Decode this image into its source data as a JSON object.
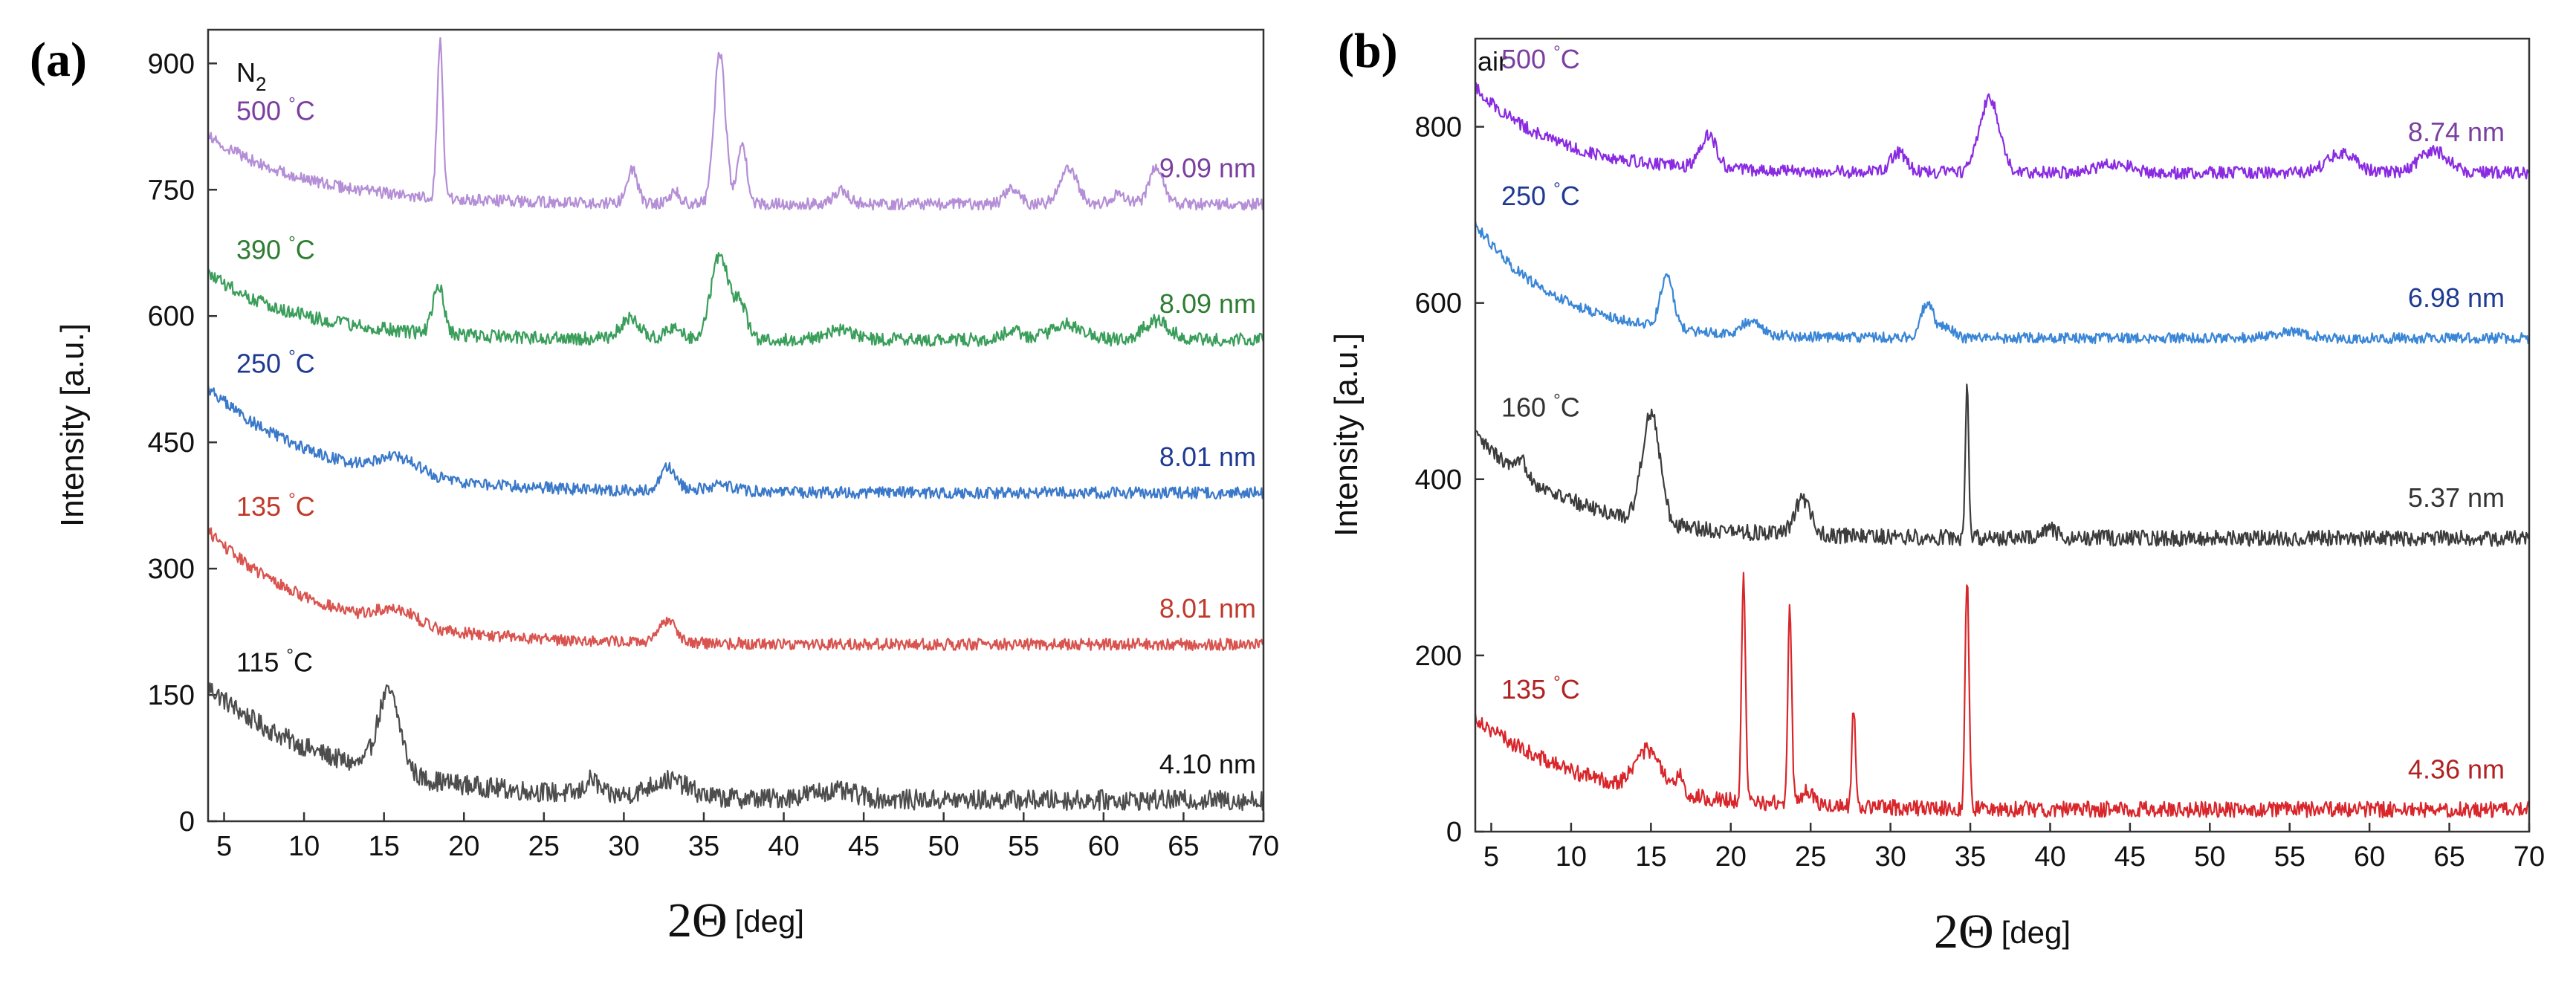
{
  "chart_data": [
    {
      "type": "line",
      "panel": "(a)",
      "atmosphere": "N",
      "atmosphere_subscript": "2",
      "xlabel_symbol": "2Θ",
      "xlabel_unit": "[deg]",
      "ylabel": "Intensity [a.u.]",
      "xlim": [
        4,
        70
      ],
      "ylim": [
        0,
        940
      ],
      "xticks": [
        5,
        10,
        15,
        20,
        25,
        30,
        35,
        40,
        45,
        50,
        55,
        60,
        65,
        70
      ],
      "yticks": [
        0,
        150,
        300,
        450,
        600,
        750,
        900
      ],
      "series": [
        {
          "name": "115 °C",
          "temp_value": "115",
          "temp_unit": "°C",
          "size": "4.10 nm",
          "color": "#4d4d4d",
          "temp_color": "#111111",
          "size_color": "#111111",
          "base": 160,
          "end": 25,
          "decay": 8,
          "noise": 12,
          "peaks": [
            [
              15.3,
              95,
              0.7
            ],
            [
              28,
              18,
              0.4
            ],
            [
              32.8,
              20,
              1.2
            ],
            [
              43,
              10,
              1.5
            ]
          ]
        },
        {
          "name": "135 °C",
          "temp_value": "135",
          "temp_unit": "°C",
          "size": "8.01 nm",
          "color": "#d9534f",
          "temp_color": "#c0392b",
          "size_color": "#c0392b",
          "base": 345,
          "end": 210,
          "decay": 7,
          "noise": 7,
          "peaks": [
            [
              15.8,
              18,
              1.2
            ],
            [
              32.8,
              28,
              0.5
            ]
          ]
        },
        {
          "name": "250 °C",
          "temp_value": "250",
          "temp_unit": "°C",
          "size": "8.01 nm",
          "color": "#3a78c9",
          "temp_color": "#1f3a93",
          "size_color": "#1f3a93",
          "base": 515,
          "end": 390,
          "decay": 7,
          "noise": 7,
          "peaks": [
            [
              15.8,
              20,
              1.3
            ],
            [
              32.8,
              28,
              0.5
            ],
            [
              36,
              8,
              1
            ]
          ]
        },
        {
          "name": "390 °C",
          "temp_value": "390",
          "temp_unit": "°C",
          "size": "8.09 nm",
          "color": "#3a9e5b",
          "temp_color": "#2e7d32",
          "size_color": "#2e7d32",
          "base": 650,
          "end": 572,
          "decay": 6,
          "noise": 8,
          "peaks": [
            [
              18.4,
              58,
              0.35
            ],
            [
              30.4,
              25,
              0.6
            ],
            [
              33.2,
              15,
              0.5
            ],
            [
              36,
              100,
              0.55
            ],
            [
              37.3,
              40,
              0.4
            ],
            [
              43.6,
              12,
              0.8
            ],
            [
              54.3,
              10,
              0.6
            ],
            [
              57.7,
              18,
              1
            ],
            [
              63.3,
              22,
              0.8
            ]
          ]
        },
        {
          "name": "500 °C",
          "temp_value": "500",
          "temp_unit": "°C",
          "size": "9.09 nm",
          "color": "#b48ed6",
          "temp_color": "#7b3fa0",
          "size_color": "#7b3fa0",
          "base": 815,
          "end": 733,
          "decay": 6,
          "noise": 7,
          "peaks": [
            [
              18.5,
              185,
              0.18
            ],
            [
              30.5,
              40,
              0.35
            ],
            [
              33.2,
              15,
              0.3
            ],
            [
              36,
              180,
              0.35
            ],
            [
              37.4,
              75,
              0.28
            ],
            [
              43.6,
              15,
              0.5
            ],
            [
              54.3,
              20,
              0.45
            ],
            [
              57.8,
              45,
              0.55
            ],
            [
              61,
              12,
              0.5
            ],
            [
              63.3,
              45,
              0.45
            ]
          ]
        }
      ]
    },
    {
      "type": "line",
      "panel": "(b)",
      "atmosphere": "air",
      "atmosphere_subscript": "",
      "xlabel_symbol": "2Θ",
      "xlabel_unit": "[deg]",
      "ylabel": "Intensity [a.u.]",
      "xlim": [
        4,
        70
      ],
      "ylim": [
        0,
        900
      ],
      "xticks": [
        5,
        10,
        15,
        20,
        25,
        30,
        35,
        40,
        45,
        50,
        55,
        60,
        65,
        70
      ],
      "yticks": [
        0,
        200,
        400,
        600,
        800
      ],
      "series": [
        {
          "name": "135 °C",
          "temp_value": "135",
          "temp_unit": "°C",
          "size": "4.36 nm",
          "color": "#d9262b",
          "temp_color": "#b22222",
          "size_color": "#b22222",
          "base": 130,
          "end": 25,
          "decay": 7,
          "noise": 9,
          "peaks": [
            [
              14.8,
              45,
              0.8
            ],
            [
              16.8,
              25,
              0.2
            ],
            [
              20.8,
              255,
              0.12
            ],
            [
              23.7,
              225,
              0.12
            ],
            [
              27.7,
              110,
              0.12
            ],
            [
              34.8,
              265,
              0.12
            ],
            [
              24.8,
              15,
              0.4
            ]
          ]
        },
        {
          "name": "160 °C",
          "temp_value": "160",
          "temp_unit": "°C",
          "size": "5.37 nm",
          "color": "#3c3c3c",
          "temp_color": "#333333",
          "size_color": "#333333",
          "base": 450,
          "end": 333,
          "decay": 6,
          "noise": 9,
          "peaks": [
            [
              15,
              125,
              0.55
            ],
            [
              24.5,
              40,
              0.5
            ],
            [
              34.8,
              180,
              0.1
            ],
            [
              40,
              10,
              0.4
            ],
            [
              7,
              15,
              0.3
            ]
          ]
        },
        {
          "name": "250 °C",
          "temp_value": "250",
          "temp_unit": "°C",
          "size": "6.98 nm",
          "color": "#3a86d6",
          "temp_color": "#1f3a93",
          "size_color": "#1f3a93",
          "base": 690,
          "end": 560,
          "decay": 5,
          "noise": 6,
          "peaks": [
            [
              16,
              60,
              0.4
            ],
            [
              21.3,
              15,
              0.6
            ],
            [
              32.3,
              40,
              0.4
            ],
            [
              33.5,
              12,
              0.4
            ],
            [
              55,
              8,
              1
            ]
          ]
        },
        {
          "name": "500 °C",
          "temp_value": "500",
          "temp_unit": "°C",
          "size": "8.74 nm",
          "color": "#8a2be2",
          "temp_color": "#7b3fa0",
          "size_color": "#7b3fa0",
          "base": 845,
          "end": 748,
          "decay": 5,
          "noise": 7,
          "peaks": [
            [
              18.6,
              38,
              0.5
            ],
            [
              30.5,
              22,
              0.5
            ],
            [
              36.2,
              85,
              0.6
            ],
            [
              44,
              10,
              1
            ],
            [
              58.2,
              22,
              0.9
            ],
            [
              64,
              25,
              0.9
            ]
          ]
        }
      ]
    }
  ]
}
